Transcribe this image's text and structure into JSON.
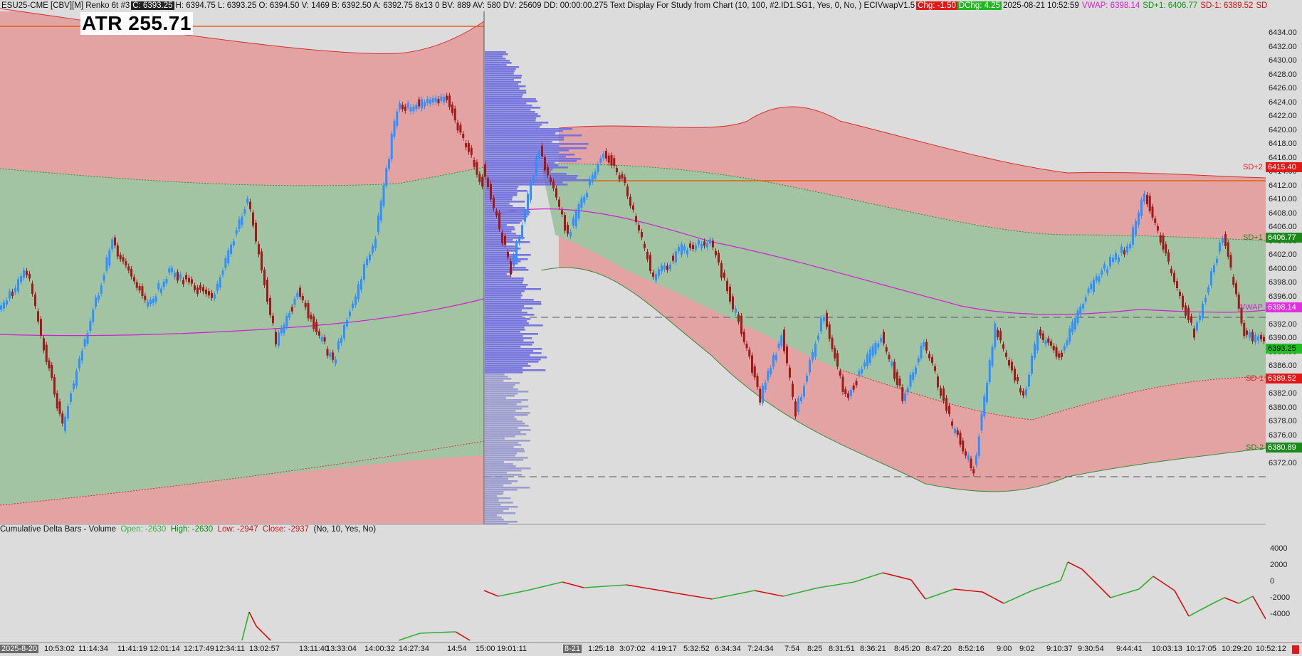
{
  "header": {
    "symbol": "ESU25-CME [CBV][M]  Renko 6t #3",
    "close": "C: 6393.25",
    "ohlc": "H: 6394.75  L: 6393.25  O: 6394.50  V: 1469  B: 6392.50  A: 6392.75  8x13  0  BV: 889  AV: 580  DV: 25609  DD: 00:00:00.275  Text Display For Study from Chart   (10, 100, #2.ID1.SG1, Yes, 0, No, )  ECIVwapV1.5",
    "chg": "Chg: -1.50",
    "dchg": "DChg: 4.25",
    "date": "2025-08-21 10:52:59",
    "vwap": "VWAP: 6398.14",
    "sd_plus1": "SD+1: 6406.77",
    "sd_minus1": "SD-1: 6389.52",
    "sd_tail": "SD+"
  },
  "atr": "ATR 255.71",
  "price_axis": {
    "ticks": [
      "6434.00",
      "6432.00",
      "6430.00",
      "6428.00",
      "6426.00",
      "6424.00",
      "6422.00",
      "6420.00",
      "6418.00",
      "6416.00",
      "6414.00",
      "6412.00",
      "6410.00",
      "6408.00",
      "6406.00",
      "6404.00",
      "6402.00",
      "6400.00",
      "6398.00",
      "6396.00",
      "6394.00",
      "6392.00",
      "6390.00",
      "6388.00",
      "6386.00",
      "6384.00",
      "6382.00",
      "6380.00",
      "6378.00",
      "6376.00",
      "6374.00",
      "6372.00"
    ],
    "badges": {
      "sd2_up": "6415.40",
      "sd1_up": "6406.77",
      "vwap": "6398.14",
      "last": "6393.25",
      "sd1_dn": "6389.52",
      "sd2_dn": "6380.89"
    },
    "line_labels": {
      "sd2_up": "SD+2",
      "sd1_up": "SD+1",
      "vwap": "VWAP",
      "sd1_dn": "SD-1",
      "sd2_dn": "SD-2"
    }
  },
  "delta_axis": {
    "ticks": [
      "4000",
      "2000",
      "0",
      "-2000",
      "-4000"
    ]
  },
  "delta_title": {
    "name": "Cumulative Delta Bars - Volume",
    "open": "Open: -2630",
    "high": "High: -2630",
    "low": "Low: -2947",
    "close": "Close: -2937",
    "params": "(No, 10, Yes, No)"
  },
  "time_axis": {
    "date1": "2025-8-20",
    "labels1": [
      "10:53:02",
      "11:14:34",
      "11:41:19",
      "12:01:14",
      "12:17:49",
      "12:34:11",
      "13:02:57",
      "13:11:40",
      "13:33:04",
      "14:00:32",
      "14:27:34",
      "14:54",
      "15:00",
      "19:01:11"
    ],
    "date2": "8-21",
    "labels2": [
      "1:25:18",
      "3:07:02",
      "4:19:17",
      "5:32:52",
      "6:34:34",
      "7:24:34",
      "7:54",
      "8:25",
      "8:31:51",
      "8:36:21",
      "8:45:20",
      "8:47:20",
      "8:52:16",
      "9:00",
      "9:02",
      "9:10:37",
      "9:30:54",
      "9:44:41",
      "10:03:13",
      "10:17:05",
      "10:29:20",
      "10:52:12"
    ]
  },
  "colors": {
    "band_red": "#e3a3a3",
    "band_green": "#a3c4a3",
    "up_bar": "#2f8fff",
    "down_bar": "#a01818",
    "vwap": "#d020d0",
    "profile": "#7070dd",
    "level_line": "#e06010"
  }
}
